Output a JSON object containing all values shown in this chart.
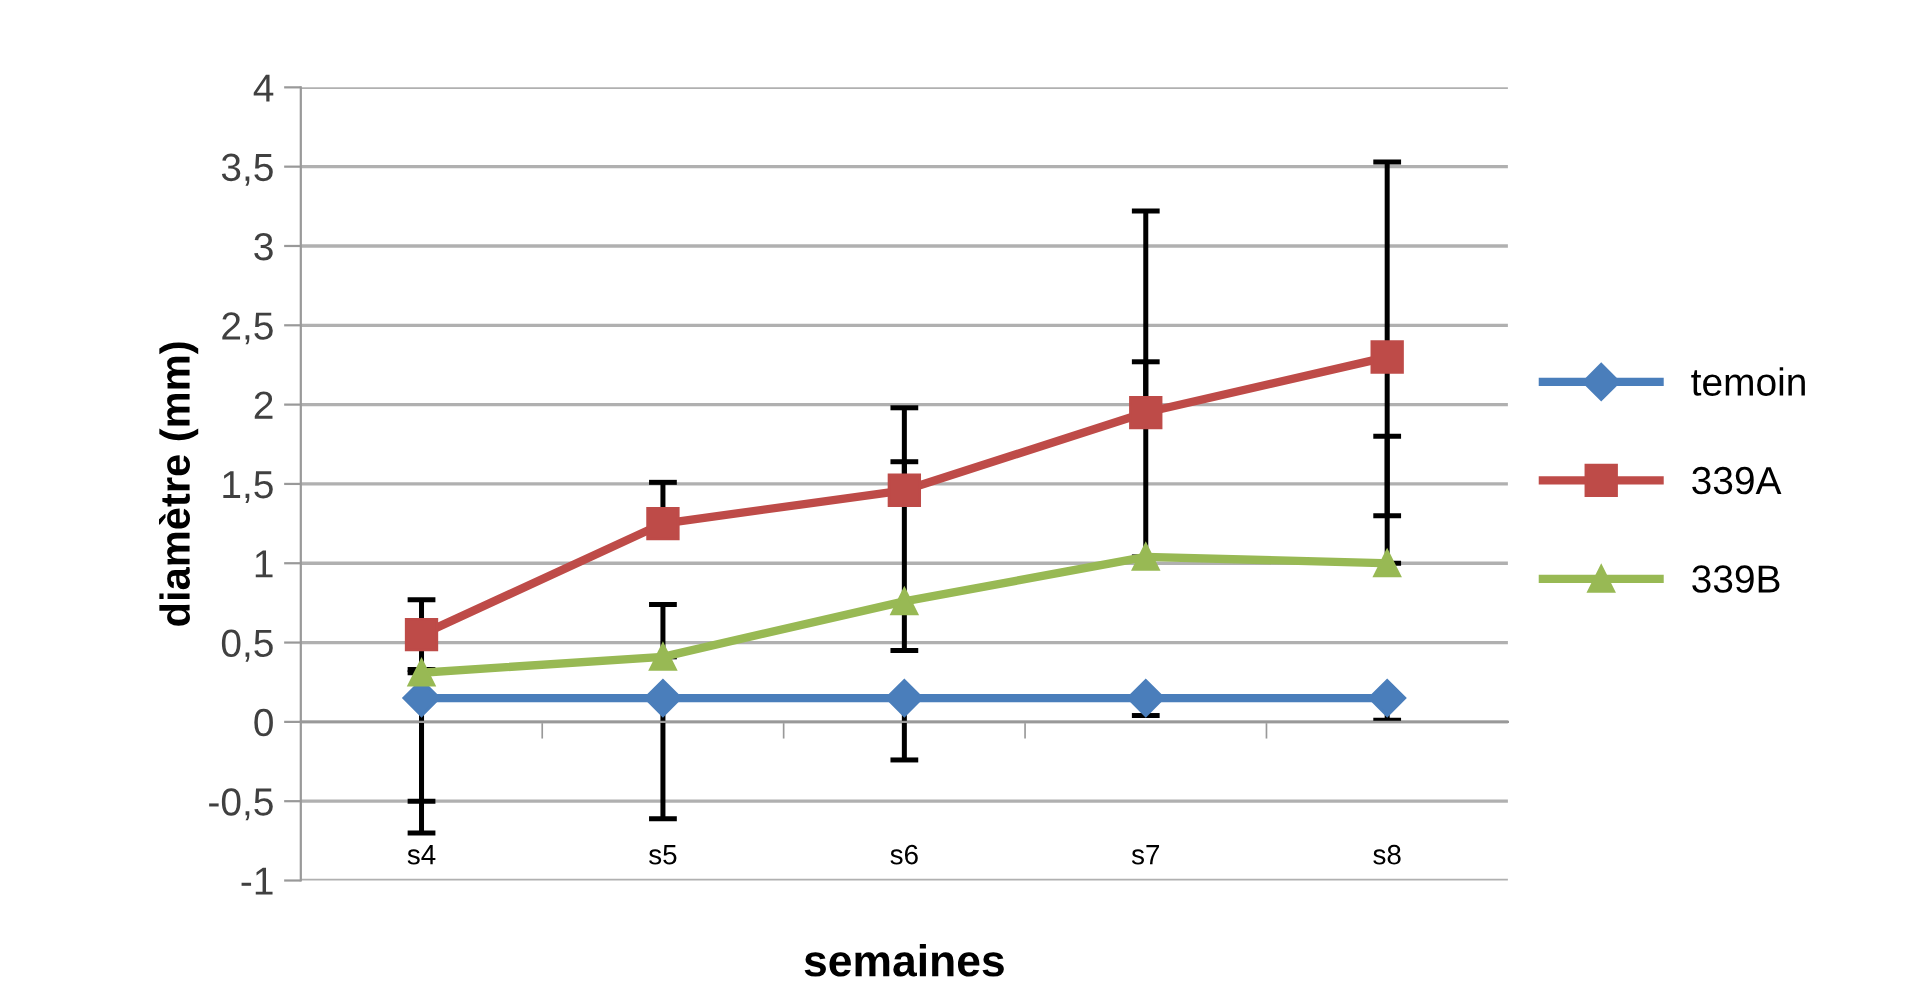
{
  "chart_data": {
    "type": "line",
    "xlabel": "semaines",
    "ylabel": "diamètre (mm)",
    "categories": [
      "s4",
      "s5",
      "s6",
      "s7",
      "s8"
    ],
    "series": [
      {
        "name": "temoin",
        "color": "#4a7ebb",
        "marker": "diamond",
        "values": [
          0.15,
          0.15,
          0.15,
          0.15,
          0.15
        ],
        "errors": [
          [
            -0.7,
            0.15
          ],
          [
            -0.61,
            0.15
          ],
          [
            -0.24,
            0.15
          ],
          [
            0.04,
            0.15
          ],
          [
            0.01,
            0.15
          ]
        ]
      },
      {
        "name": "339A",
        "color": "#be4b48",
        "marker": "square",
        "values": [
          0.55,
          1.25,
          1.46,
          1.95,
          2.3
        ],
        "errors": [
          [
            0.33,
            0.77
          ],
          [
            1.25,
            1.51
          ],
          [
            1.46,
            1.98
          ],
          [
            1.95,
            3.22
          ],
          [
            1.3,
            3.53
          ]
        ]
      },
      {
        "name": "339B",
        "color": "#98b954",
        "marker": "triangle",
        "values": [
          0.31,
          0.41,
          0.76,
          1.04,
          1.0
        ],
        "errors": [
          [
            -0.5,
            0.31
          ],
          [
            0.41,
            0.74
          ],
          [
            0.45,
            1.64
          ],
          [
            1.04,
            2.27
          ],
          [
            1.0,
            1.8
          ]
        ]
      }
    ],
    "ylim": [
      -1,
      4
    ],
    "yticks": [
      -1,
      {
        "value": -0.5,
        "label": "-0,5"
      },
      0,
      {
        "value": 0.5,
        "label": "0,5"
      },
      1,
      {
        "value": 1.5,
        "label": "1,5"
      },
      2,
      {
        "value": 2.5,
        "label": "2,5"
      },
      3,
      {
        "value": 3.5,
        "label": "3,5"
      },
      4
    ],
    "grid": "y",
    "legend": "right"
  }
}
